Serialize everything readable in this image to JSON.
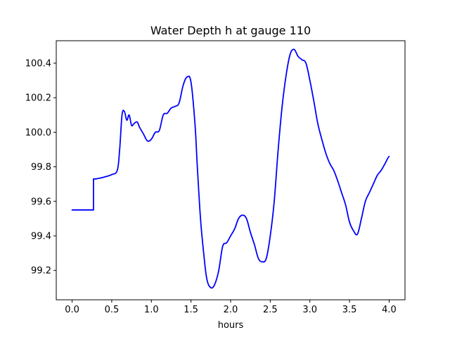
{
  "chart_data": {
    "type": "line",
    "title": "Water Depth h at gauge 110",
    "xlabel": "hours",
    "ylabel": "",
    "xlim": [
      -0.2,
      4.2
    ],
    "ylim": [
      99.03,
      100.53
    ],
    "grid": false,
    "legend": "none",
    "x_ticks": [
      0.0,
      0.5,
      1.0,
      1.5,
      2.0,
      2.5,
      3.0,
      3.5,
      4.0
    ],
    "x_tick_labels": [
      "0.0",
      "0.5",
      "1.0",
      "1.5",
      "2.0",
      "2.5",
      "3.0",
      "3.5",
      "4.0"
    ],
    "y_ticks": [
      99.2,
      99.4,
      99.6,
      99.8,
      100.0,
      100.2,
      100.4
    ],
    "y_tick_labels": [
      "99.2",
      "99.4",
      "99.6",
      "99.8",
      "100.0",
      "100.2",
      "100.4"
    ],
    "series": [
      {
        "color": "#0000ff",
        "x": [
          0.0,
          0.27,
          0.27,
          0.3,
          0.4,
          0.5,
          0.57,
          0.6,
          0.63,
          0.66,
          0.69,
          0.72,
          0.75,
          0.78,
          0.82,
          0.85,
          0.9,
          0.95,
          1.0,
          1.05,
          1.1,
          1.15,
          1.2,
          1.25,
          1.3,
          1.35,
          1.4,
          1.45,
          1.5,
          1.55,
          1.58,
          1.62,
          1.66,
          1.7,
          1.75,
          1.8,
          1.85,
          1.9,
          1.95,
          2.0,
          2.05,
          2.1,
          2.15,
          2.2,
          2.25,
          2.3,
          2.35,
          2.4,
          2.45,
          2.5,
          2.55,
          2.6,
          2.65,
          2.7,
          2.75,
          2.8,
          2.85,
          2.9,
          2.95,
          3.0,
          3.05,
          3.1,
          3.15,
          3.2,
          3.25,
          3.3,
          3.35,
          3.4,
          3.45,
          3.5,
          3.55,
          3.6,
          3.65,
          3.7,
          3.75,
          3.8,
          3.85,
          3.9,
          3.95,
          4.0
        ],
        "values": [
          99.55,
          99.55,
          99.73,
          99.73,
          99.74,
          99.755,
          99.78,
          99.9,
          100.1,
          100.12,
          100.07,
          100.1,
          100.04,
          100.05,
          100.06,
          100.03,
          99.99,
          99.95,
          99.96,
          100.0,
          100.01,
          100.1,
          100.11,
          100.14,
          100.15,
          100.17,
          100.27,
          100.32,
          100.29,
          100.05,
          99.8,
          99.5,
          99.3,
          99.15,
          99.1,
          99.12,
          99.2,
          99.34,
          99.36,
          99.4,
          99.44,
          99.5,
          99.52,
          99.5,
          99.42,
          99.35,
          99.27,
          99.25,
          99.27,
          99.4,
          99.6,
          99.9,
          100.15,
          100.33,
          100.45,
          100.48,
          100.44,
          100.42,
          100.4,
          100.3,
          100.18,
          100.05,
          99.96,
          99.88,
          99.82,
          99.78,
          99.72,
          99.65,
          99.58,
          99.48,
          99.43,
          99.41,
          99.5,
          99.6,
          99.65,
          99.7,
          99.75,
          99.78,
          99.82,
          99.86
        ]
      }
    ]
  }
}
